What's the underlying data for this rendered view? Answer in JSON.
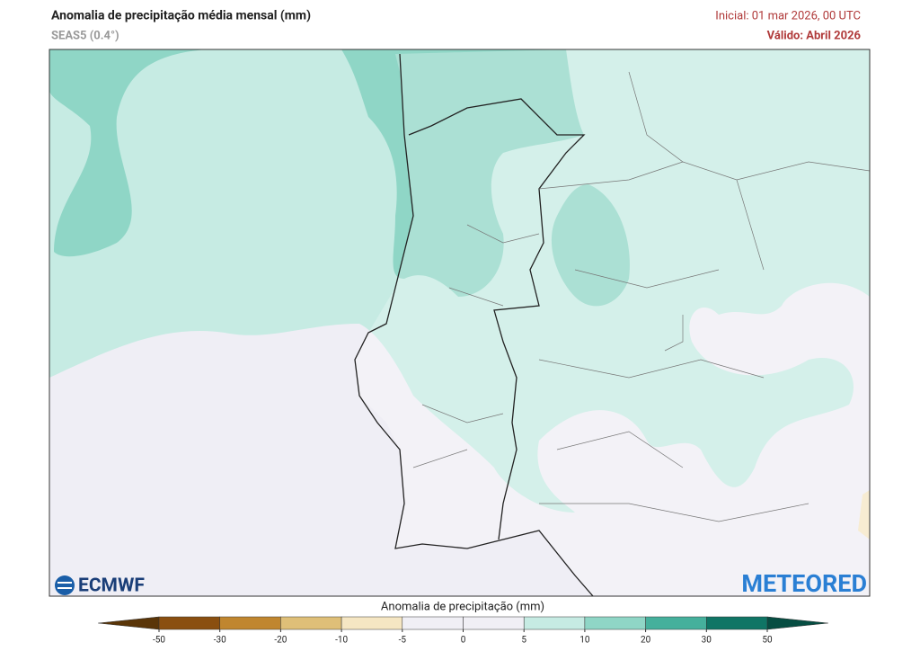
{
  "header": {
    "title": "Anomalia de precipitação média mensal (mm)",
    "subtitle": "SEAS5 (0.4°)",
    "initial": "Inicial: 01 mar 2026, 00 UTC",
    "valid": "Válido: Abril 2026"
  },
  "logos": {
    "left": "ECMWF",
    "right": "METEORED"
  },
  "colorbar": {
    "title": "Anomalia de precipitação (mm)",
    "ticks": [
      -50,
      -30,
      -20,
      -10,
      -5,
      0,
      5,
      10,
      20,
      30,
      50
    ],
    "colors": [
      "#5a3508",
      "#8a4f10",
      "#c0862f",
      "#dfbf78",
      "#f5e6c3",
      "#f0eff5",
      "#f0eff5",
      "#c6ebe3",
      "#8fd6c6",
      "#45b09c",
      "#0f7565",
      "#064d42"
    ]
  }
}
